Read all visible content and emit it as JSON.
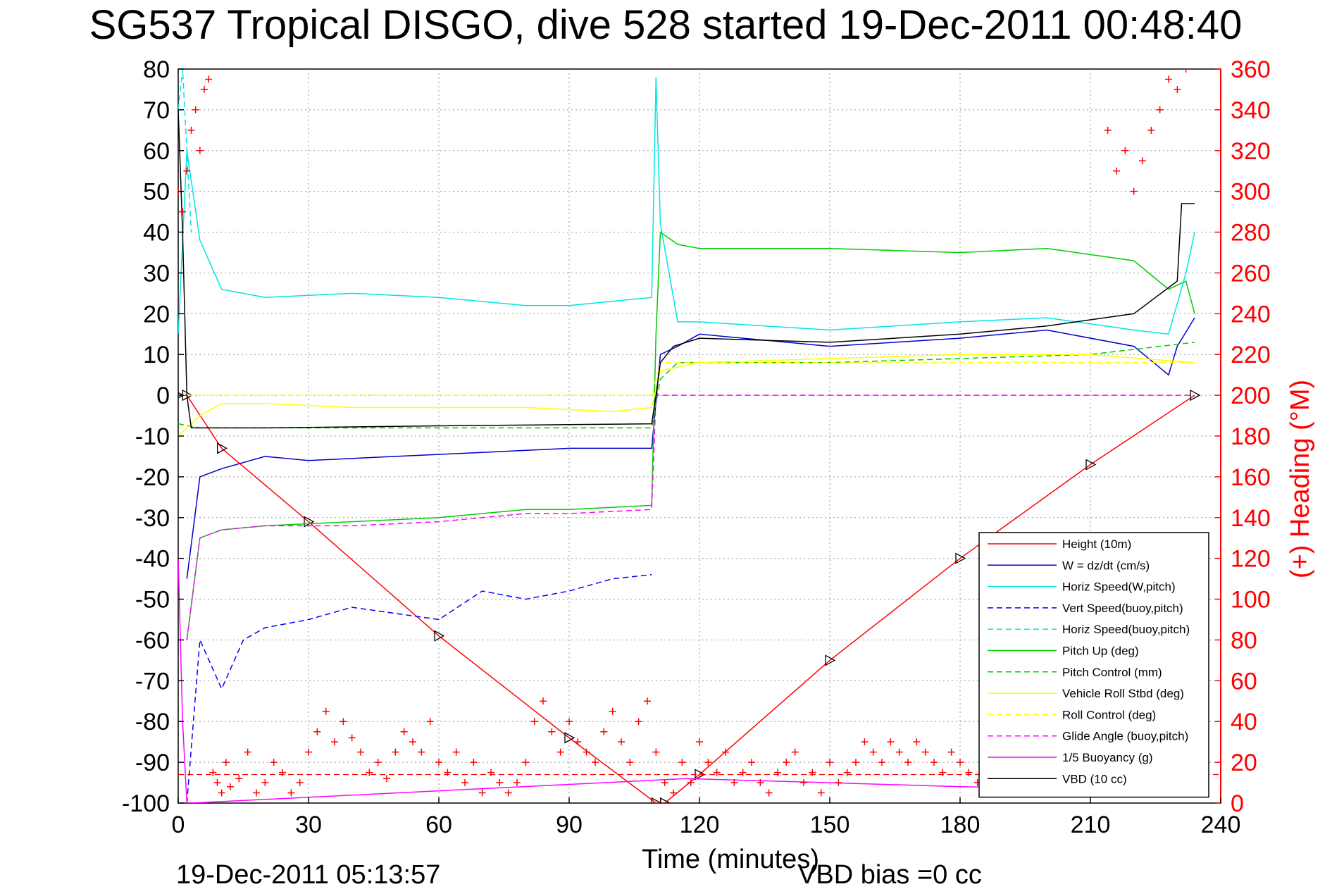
{
  "chart_data": {
    "type": "line",
    "title": "SG537 Tropical DISGO, dive 528 started 19-Dec-2011 00:48:40",
    "xlabel": "Time (minutes)",
    "ylabel_right": "(+) Heading (°M)",
    "xlim": [
      0,
      240
    ],
    "ylim": [
      -100,
      80
    ],
    "ylim_right": [
      0,
      360
    ],
    "x_ticks": [
      "0",
      "30",
      "60",
      "90",
      "120",
      "150",
      "180",
      "210",
      "240"
    ],
    "y_ticks": [
      "80",
      "70",
      "60",
      "50",
      "40",
      "30",
      "20",
      "10",
      "0",
      "-10",
      "-20",
      "-30",
      "-40",
      "-50",
      "-60",
      "-70",
      "-80",
      "-90",
      "-100"
    ],
    "y_ticks_right": [
      "360",
      "340",
      "320",
      "300",
      "280",
      "260",
      "240",
      "220",
      "200",
      "180",
      "160",
      "140",
      "120",
      "100",
      "80",
      "60",
      "40",
      "20",
      "0"
    ],
    "grid": true,
    "legend_position": "bottom-right",
    "colors": {
      "height": "#ff0000",
      "w": "#0000cc",
      "horiz_speed": "#00e5e5",
      "vert_speed_buoy": "#0000ff",
      "horiz_speed_buoy": "#00e5e5",
      "pitch_up": "#00cc00",
      "pitch_control": "#00cc00",
      "roll": "#ffff00",
      "roll_control": "#ffff00",
      "glide_angle": "#ff00ff",
      "buoyancy": "#ff00ff",
      "vbd": "#000000",
      "heading": "#ff0000"
    },
    "series": [
      {
        "key": "height",
        "name": "Height (10m)",
        "style": "solid",
        "x": [
          0,
          2,
          10,
          30,
          60,
          90,
          110,
          112,
          120,
          150,
          180,
          210,
          234
        ],
        "y": [
          0,
          0,
          -13,
          -31,
          -59,
          -84,
          -100,
          -100,
          -93,
          -65,
          -40,
          -17,
          0
        ]
      },
      {
        "key": "w",
        "name": "W = dz/dt (cm/s)",
        "style": "solid",
        "x": [
          2,
          5,
          10,
          20,
          30,
          50,
          70,
          90,
          109,
          111,
          115,
          120,
          150,
          180,
          200,
          220,
          228,
          230,
          234
        ],
        "y": [
          -45,
          -20,
          -18,
          -15,
          -16,
          -15,
          -14,
          -13,
          -13,
          10,
          12,
          15,
          12,
          14,
          16,
          12,
          5,
          12,
          19
        ]
      },
      {
        "key": "horiz_speed",
        "name": "Horiz Speed(W,pitch)",
        "style": "solid",
        "x": [
          0,
          2,
          5,
          10,
          20,
          40,
          60,
          80,
          90,
          109,
          110,
          111,
          115,
          120,
          150,
          180,
          200,
          220,
          228,
          232,
          234
        ],
        "y": [
          15,
          60,
          38,
          26,
          24,
          25,
          24,
          22,
          22,
          24,
          78,
          42,
          18,
          18,
          16,
          18,
          19,
          16,
          15,
          30,
          40
        ]
      },
      {
        "key": "vert_speed_buoy",
        "name": "Vert Speed(buoy,pitch)",
        "style": "dashed",
        "x": [
          2,
          5,
          10,
          15,
          20,
          30,
          40,
          60,
          70,
          80,
          90,
          100,
          109
        ],
        "y": [
          -100,
          -60,
          -72,
          -60,
          -57,
          -55,
          -52,
          -55,
          -48,
          -50,
          -48,
          -45,
          -44
        ]
      },
      {
        "key": "horiz_speed_buoy",
        "name": "Horiz Speed(buoy,pitch)",
        "style": "dashed",
        "x": [
          0,
          1,
          2,
          3
        ],
        "y": [
          70,
          80,
          60,
          40
        ]
      },
      {
        "key": "pitch_up",
        "name": "Pitch Up (deg)",
        "style": "solid",
        "x": [
          2,
          5,
          10,
          20,
          40,
          60,
          80,
          90,
          109,
          110,
          111,
          115,
          120,
          150,
          180,
          200,
          220,
          228,
          232,
          234
        ],
        "y": [
          -60,
          -35,
          -33,
          -32,
          -31,
          -30,
          -28,
          -28,
          -27,
          15,
          40,
          37,
          36,
          36,
          35,
          36,
          33,
          26,
          28,
          20
        ]
      },
      {
        "key": "pitch_control",
        "name": "Pitch Control (mm)",
        "style": "dashed",
        "x": [
          0,
          5,
          20,
          60,
          90,
          109,
          111,
          115,
          150,
          180,
          210,
          234
        ],
        "y": [
          -7,
          -8,
          -8,
          -8,
          -8,
          -8,
          4,
          8,
          8,
          9,
          10,
          13
        ]
      },
      {
        "key": "roll",
        "name": "Vehicle Roll Stbd (deg)",
        "style": "solid",
        "x": [
          0,
          5,
          10,
          20,
          40,
          60,
          80,
          100,
          109,
          111,
          120,
          150,
          180,
          210,
          234
        ],
        "y": [
          -10,
          -5,
          -2,
          -2,
          -3,
          -3,
          -3,
          -4,
          -3,
          6,
          8,
          9,
          10,
          10,
          8
        ]
      },
      {
        "key": "roll_control",
        "name": "Roll Control (deg)",
        "style": "dashed",
        "x": [
          0,
          10,
          60,
          109,
          111,
          150,
          200,
          234
        ],
        "y": [
          0,
          0,
          0,
          0,
          8,
          8,
          8,
          8
        ]
      },
      {
        "key": "glide_angle",
        "name": "Glide Angle (buoy,pitch)",
        "style": "dashed",
        "x": [
          2,
          5,
          10,
          20,
          40,
          60,
          80,
          90,
          109,
          110,
          111,
          150,
          200,
          234
        ],
        "y": [
          -60,
          -35,
          -33,
          -32,
          -32,
          -31,
          -29,
          -29,
          -28,
          0,
          0,
          0,
          0,
          0
        ]
      },
      {
        "key": "buoyancy",
        "name": "1/5 Buoyancy (g)",
        "style": "solid",
        "x": [
          0,
          1,
          2,
          3,
          117,
          150,
          180,
          234
        ],
        "y": [
          -40,
          -80,
          -100,
          -100,
          -94,
          -95,
          -96,
          -97
        ]
      },
      {
        "key": "vbd",
        "name": "VBD (10 cc)",
        "style": "solid",
        "x": [
          0,
          1,
          2,
          3,
          20,
          60,
          90,
          109,
          110,
          111,
          114,
          120,
          150,
          180,
          200,
          220,
          230,
          231,
          234
        ],
        "y": [
          70,
          40,
          0,
          -8,
          -8,
          -7.5,
          -7.2,
          -7,
          0,
          8,
          12,
          14,
          13,
          15,
          17,
          20,
          28,
          47,
          47
        ]
      },
      {
        "key": "heading",
        "name": "Heading",
        "style": "marker-plus",
        "axis": "right",
        "x": [
          0,
          1,
          2,
          3,
          4,
          5,
          6,
          7,
          8,
          9,
          10,
          11,
          12,
          14,
          16,
          18,
          20,
          22,
          24,
          26,
          28,
          30,
          32,
          34,
          36,
          38,
          40,
          42,
          44,
          46,
          48,
          50,
          52,
          54,
          56,
          58,
          60,
          62,
          64,
          66,
          68,
          70,
          72,
          74,
          76,
          78,
          80,
          82,
          84,
          86,
          88,
          90,
          92,
          94,
          96,
          98,
          100,
          102,
          104,
          106,
          108,
          110,
          112,
          114,
          116,
          118,
          120,
          122,
          124,
          126,
          128,
          130,
          132,
          134,
          136,
          138,
          140,
          142,
          144,
          146,
          148,
          150,
          152,
          154,
          156,
          158,
          160,
          162,
          164,
          166,
          168,
          170,
          172,
          174,
          176,
          178,
          180,
          182,
          184,
          186,
          188,
          190,
          192,
          194,
          196,
          198,
          200,
          202,
          204,
          206,
          208,
          210,
          212,
          214,
          216,
          218,
          220,
          222,
          224,
          226,
          228,
          230,
          232,
          234
        ],
        "y": [
          300,
          290,
          310,
          330,
          340,
          320,
          350,
          355,
          15,
          10,
          5,
          20,
          8,
          12,
          25,
          5,
          10,
          20,
          15,
          5,
          10,
          25,
          35,
          45,
          30,
          40,
          32,
          25,
          15,
          20,
          12,
          25,
          35,
          30,
          25,
          40,
          20,
          15,
          25,
          10,
          20,
          5,
          15,
          10,
          5,
          10,
          20,
          40,
          50,
          35,
          25,
          40,
          30,
          25,
          20,
          35,
          45,
          30,
          20,
          40,
          50,
          25,
          10,
          5,
          20,
          10,
          30,
          20,
          15,
          25,
          10,
          15,
          20,
          10,
          5,
          15,
          20,
          25,
          10,
          15,
          5,
          20,
          10,
          15,
          20,
          30,
          25,
          20,
          30,
          25,
          20,
          30,
          25,
          20,
          15,
          25,
          20,
          15,
          10,
          20,
          25,
          15,
          20,
          10,
          15,
          20,
          25,
          15,
          10,
          5,
          15,
          20,
          25,
          330,
          310,
          320,
          300,
          315,
          330,
          340,
          355,
          350,
          360,
          20
        ]
      }
    ],
    "footer_left": "19-Dec-2011 05:13:57",
    "footer_right": "VBD bias =0 cc"
  }
}
